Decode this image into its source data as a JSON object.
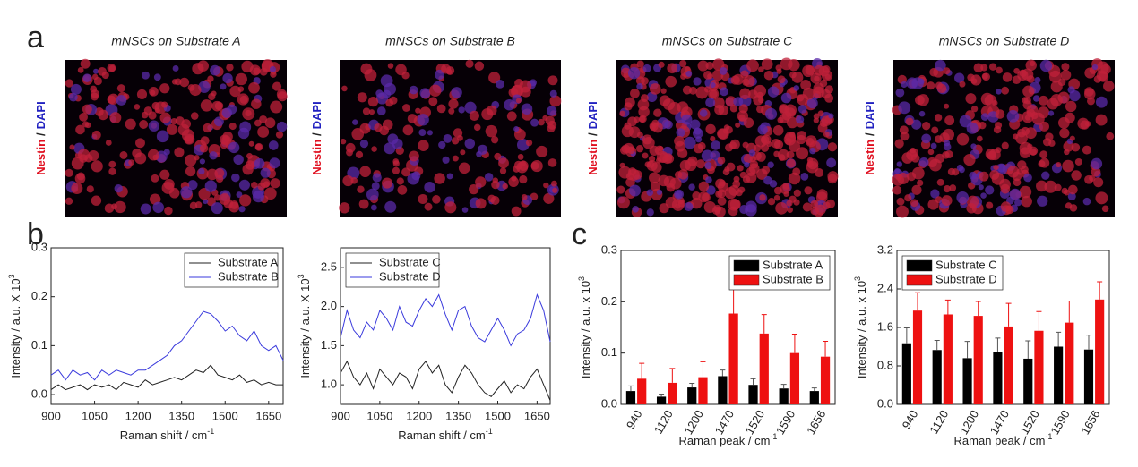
{
  "panel_labels": [
    "a",
    "b",
    "c"
  ],
  "stain_labels": {
    "red": "Nestin",
    "sep": "/",
    "blue": "DAPI"
  },
  "images": [
    {
      "title": "mNSCs on Substrate A"
    },
    {
      "title": "mNSCs on Substrate B"
    },
    {
      "title": "mNSCs on Substrate C"
    },
    {
      "title": "mNSCs on Substrate D"
    }
  ],
  "chart_data": [
    {
      "type": "line",
      "xlabel": "Raman shift / cm",
      "xlabel_sup": "-1",
      "ylabel": "Intensity / a.u. X 10",
      "ylabel_sup": "3",
      "xlim": [
        900,
        1700
      ],
      "xticks": [
        900,
        1050,
        1200,
        1350,
        1500,
        1650
      ],
      "ylim": [
        -0.02,
        0.3
      ],
      "yticks": [
        {
          "value": 0,
          "label": "0.0"
        },
        0.1,
        0.2,
        0.3
      ],
      "legend": "upper right",
      "x": [
        900,
        925,
        950,
        975,
        1000,
        1025,
        1050,
        1075,
        1100,
        1125,
        1150,
        1175,
        1200,
        1225,
        1250,
        1275,
        1300,
        1325,
        1350,
        1375,
        1400,
        1425,
        1450,
        1475,
        1500,
        1525,
        1550,
        1575,
        1600,
        1625,
        1650,
        1675,
        1700
      ],
      "series": [
        {
          "name": "Substrate A",
          "color": "#222222",
          "values": [
            0.01,
            0.02,
            0.01,
            0.015,
            0.02,
            0.01,
            0.02,
            0.015,
            0.02,
            0.01,
            0.025,
            0.02,
            0.015,
            0.03,
            0.02,
            0.025,
            0.03,
            0.035,
            0.03,
            0.04,
            0.05,
            0.045,
            0.06,
            0.04,
            0.035,
            0.03,
            0.04,
            0.025,
            0.03,
            0.02,
            0.025,
            0.02,
            0.02
          ]
        },
        {
          "name": "Substrate B",
          "color": "#3a3adc",
          "values": [
            0.04,
            0.05,
            0.03,
            0.05,
            0.04,
            0.045,
            0.03,
            0.05,
            0.04,
            0.05,
            0.045,
            0.04,
            0.05,
            0.05,
            0.06,
            0.07,
            0.08,
            0.1,
            0.11,
            0.13,
            0.15,
            0.17,
            0.165,
            0.15,
            0.13,
            0.14,
            0.12,
            0.11,
            0.13,
            0.1,
            0.09,
            0.1,
            0.07
          ]
        }
      ]
    },
    {
      "type": "line",
      "xlabel": "Raman shift / cm",
      "xlabel_sup": "-1",
      "ylabel": "Intensity / a.u. X 10",
      "ylabel_sup": "3",
      "xlim": [
        900,
        1700
      ],
      "xticks": [
        900,
        1050,
        1200,
        1350,
        1500,
        1650
      ],
      "ylim": [
        0.75,
        2.75
      ],
      "yticks": [
        {
          "value": 1,
          "label": "1.0"
        },
        1.5,
        {
          "value": 2,
          "label": "2.0"
        },
        2.5
      ],
      "legend": "upper left",
      "x": [
        900,
        925,
        950,
        975,
        1000,
        1025,
        1050,
        1075,
        1100,
        1125,
        1150,
        1175,
        1200,
        1225,
        1250,
        1275,
        1300,
        1325,
        1350,
        1375,
        1400,
        1425,
        1450,
        1475,
        1500,
        1525,
        1550,
        1575,
        1600,
        1625,
        1650,
        1675,
        1700
      ],
      "series": [
        {
          "name": "Substrate C",
          "color": "#222222",
          "values": [
            1.15,
            1.3,
            1.1,
            1.0,
            1.15,
            0.95,
            1.2,
            1.1,
            1.0,
            1.15,
            1.1,
            0.95,
            1.2,
            1.3,
            1.15,
            1.25,
            1.0,
            0.9,
            1.1,
            1.25,
            1.15,
            1.0,
            0.9,
            0.85,
            0.95,
            1.05,
            0.9,
            1.0,
            0.95,
            1.1,
            1.2,
            1.0,
            0.8
          ]
        },
        {
          "name": "Substrate D",
          "color": "#3a3adc",
          "values": [
            1.6,
            1.95,
            1.7,
            1.6,
            1.8,
            1.7,
            1.95,
            1.85,
            1.7,
            2.0,
            1.8,
            1.75,
            1.95,
            2.1,
            2.0,
            2.15,
            1.9,
            1.7,
            1.95,
            2.0,
            1.75,
            1.6,
            1.55,
            1.7,
            1.85,
            1.7,
            1.5,
            1.65,
            1.7,
            1.85,
            2.15,
            1.95,
            1.55
          ]
        }
      ]
    },
    {
      "type": "bar",
      "xlabel": "Raman peak / cm",
      "xlabel_sup": "-1",
      "ylabel": "Intensity / a.u. x 10",
      "ylabel_sup": "3",
      "ylim": [
        0,
        0.3
      ],
      "yticks": [
        {
          "value": 0,
          "label": "0.0"
        },
        0.1,
        0.2,
        0.3
      ],
      "legend": "upper right",
      "categories": [
        "940",
        "1120",
        "1200",
        "1470",
        "1520",
        "1590",
        "1656"
      ],
      "series": [
        {
          "name": "Substrate A",
          "color": "#000000",
          "values": [
            0.026,
            0.015,
            0.033,
            0.055,
            0.038,
            0.031,
            0.026
          ],
          "errors": [
            0.01,
            0.005,
            0.008,
            0.012,
            0.012,
            0.008,
            0.006
          ]
        },
        {
          "name": "Substrate B",
          "color": "#ee1111",
          "values": [
            0.05,
            0.042,
            0.053,
            0.177,
            0.138,
            0.1,
            0.093
          ],
          "errors": [
            0.03,
            0.028,
            0.03,
            0.06,
            0.037,
            0.037,
            0.03
          ]
        }
      ]
    },
    {
      "type": "bar",
      "xlabel": "Raman peak / cm",
      "xlabel_sup": "-1",
      "ylabel": "Intensity / a.u. x 10",
      "ylabel_sup": "3",
      "ylim": [
        0,
        3.2
      ],
      "yticks": [
        {
          "value": 0,
          "label": "0.0"
        },
        0.8,
        1.6,
        2.4,
        3.2
      ],
      "legend": "upper left",
      "categories": [
        "940",
        "1120",
        "1200",
        "1470",
        "1520",
        "1590",
        "1656"
      ],
      "series": [
        {
          "name": "Substrate C",
          "color": "#000000",
          "values": [
            1.27,
            1.13,
            0.96,
            1.08,
            0.95,
            1.2,
            1.14
          ],
          "errors": [
            0.32,
            0.2,
            0.35,
            0.3,
            0.37,
            0.3,
            0.3
          ]
        },
        {
          "name": "Substrate D",
          "color": "#ee1111",
          "values": [
            1.95,
            1.87,
            1.84,
            1.62,
            1.53,
            1.7,
            2.18
          ],
          "errors": [
            0.37,
            0.3,
            0.3,
            0.48,
            0.4,
            0.45,
            0.37
          ]
        }
      ]
    }
  ]
}
